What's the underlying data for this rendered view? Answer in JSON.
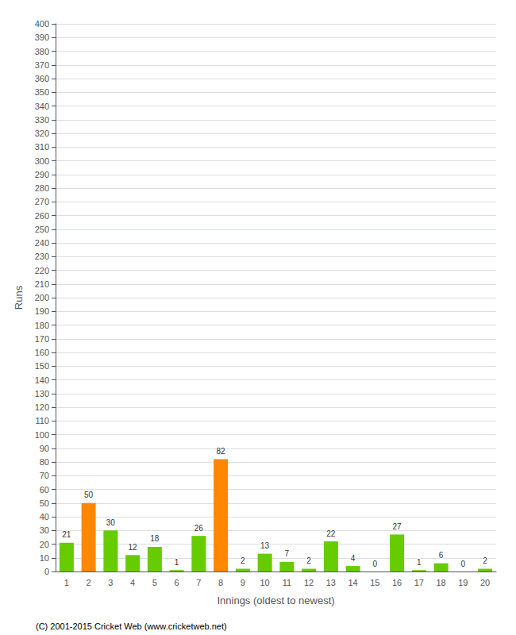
{
  "chart_data": {
    "type": "bar",
    "xlabel": "Innings (oldest to newest)",
    "ylabel": "Runs",
    "categories": [
      1,
      2,
      3,
      4,
      5,
      6,
      7,
      8,
      9,
      10,
      11,
      12,
      13,
      14,
      15,
      16,
      17,
      18,
      19,
      20
    ],
    "values": [
      21,
      50,
      30,
      12,
      18,
      1,
      26,
      82,
      2,
      13,
      7,
      2,
      22,
      4,
      0,
      27,
      1,
      6,
      0,
      2
    ],
    "colors": [
      "#66cc00",
      "#ff8800",
      "#66cc00",
      "#66cc00",
      "#66cc00",
      "#66cc00",
      "#66cc00",
      "#ff8800",
      "#66cc00",
      "#66cc00",
      "#66cc00",
      "#66cc00",
      "#66cc00",
      "#66cc00",
      "#66cc00",
      "#66cc00",
      "#66cc00",
      "#66cc00",
      "#66cc00",
      "#66cc00"
    ],
    "ylim": [
      0,
      400
    ],
    "yticks": [
      0,
      10,
      20,
      30,
      40,
      50,
      60,
      70,
      80,
      90,
      100,
      110,
      120,
      130,
      140,
      150,
      160,
      170,
      180,
      190,
      200,
      210,
      220,
      230,
      240,
      250,
      260,
      270,
      280,
      290,
      300,
      310,
      320,
      330,
      340,
      350,
      360,
      370,
      380,
      390,
      400
    ],
    "grid": true,
    "data_labels": true,
    "annotations": [
      "(C) 2001-2015 Cricket Web (www.cricketweb.net)"
    ]
  }
}
